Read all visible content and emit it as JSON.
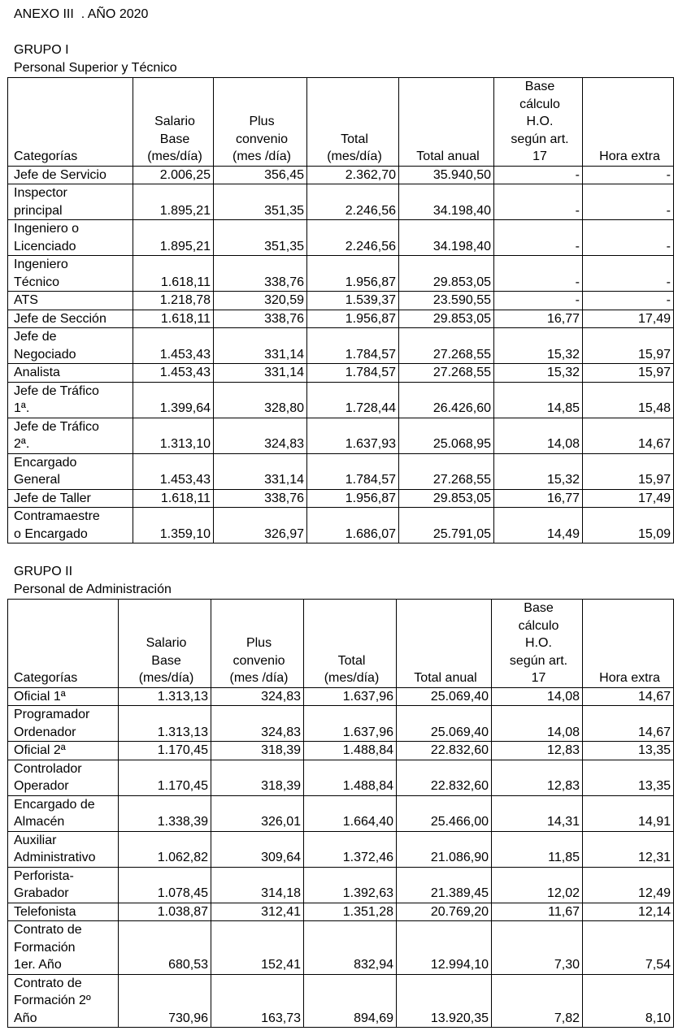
{
  "title": "ANEXO III  . AÑO 2020",
  "groups": [
    {
      "name": "GRUPO I",
      "subtitle": "Personal Superior y Técnico",
      "header": [
        [
          "Categorías"
        ],
        [
          "Salario",
          "Base",
          "(mes/día)"
        ],
        [
          "Plus",
          "convenio",
          "(mes /día)"
        ],
        [
          "Total",
          "(mes/día)"
        ],
        [
          "Total anual"
        ],
        [
          "Base",
          "cálculo",
          "H.O.",
          "según art.",
          "17"
        ],
        [
          "Hora extra"
        ]
      ],
      "rows": [
        {
          "category": [
            "Jefe de Servicio"
          ],
          "values": [
            "2.006,25",
            "356,45",
            "2.362,70",
            "35.940,50",
            "-",
            "-"
          ]
        },
        {
          "category": [
            "Inspector",
            "principal"
          ],
          "values": [
            "1.895,21",
            "351,35",
            "2.246,56",
            "34.198,40",
            "-",
            "-"
          ]
        },
        {
          "category": [
            "Ingeniero o",
            "Licenciado"
          ],
          "values": [
            "1.895,21",
            "351,35",
            "2.246,56",
            "34.198,40",
            "-",
            "-"
          ]
        },
        {
          "category": [
            "Ingeniero",
            "Técnico"
          ],
          "values": [
            "1.618,11",
            "338,76",
            "1.956,87",
            "29.853,05",
            "-",
            "-"
          ]
        },
        {
          "category": [
            "ATS"
          ],
          "values": [
            "1.218,78",
            "320,59",
            "1.539,37",
            "23.590,55",
            "-",
            "-"
          ]
        },
        {
          "category": [
            "Jefe de Sección"
          ],
          "values": [
            "1.618,11",
            "338,76",
            "1.956,87",
            "29.853,05",
            "16,77",
            "17,49"
          ]
        },
        {
          "category": [
            "Jefe de",
            "Negociado"
          ],
          "values": [
            "1.453,43",
            "331,14",
            "1.784,57",
            "27.268,55",
            "15,32",
            "15,97"
          ]
        },
        {
          "category": [
            "Analista"
          ],
          "values": [
            "1.453,43",
            "331,14",
            "1.784,57",
            "27.268,55",
            "15,32",
            "15,97"
          ]
        },
        {
          "category": [
            "Jefe de Tráfico",
            "1ª."
          ],
          "values": [
            "1.399,64",
            "328,80",
            "1.728,44",
            "26.426,60",
            "14,85",
            "15,48"
          ]
        },
        {
          "category": [
            "Jefe de Tráfico",
            "2ª."
          ],
          "values": [
            "1.313,10",
            "324,83",
            "1.637,93",
            "25.068,95",
            "14,08",
            "14,67"
          ]
        },
        {
          "category": [
            "Encargado",
            "General"
          ],
          "values": [
            "1.453,43",
            "331,14",
            "1.784,57",
            "27.268,55",
            "15,32",
            "15,97"
          ]
        },
        {
          "category": [
            "Jefe de Taller"
          ],
          "values": [
            "1.618,11",
            "338,76",
            "1.956,87",
            "29.853,05",
            "16,77",
            "17,49"
          ]
        },
        {
          "category": [
            "Contramaestre",
            "o Encargado"
          ],
          "values": [
            "1.359,10",
            "326,97",
            "1.686,07",
            "25.791,05",
            "14,49",
            "15,09"
          ]
        }
      ]
    },
    {
      "name": "GRUPO II",
      "subtitle": "Personal de Administración",
      "header": [
        [
          "Categorías"
        ],
        [
          "Salario",
          "Base",
          "(mes/día)"
        ],
        [
          "Plus",
          "convenio",
          "(mes /día)"
        ],
        [
          "Total",
          "(mes/día)"
        ],
        [
          "Total anual"
        ],
        [
          "Base",
          "cálculo",
          "H.O.",
          "según art.",
          "17"
        ],
        [
          "Hora extra"
        ]
      ],
      "rows": [
        {
          "category": [
            "Oficial 1ª"
          ],
          "values": [
            "1.313,13",
            "324,83",
            "1.637,96",
            "25.069,40",
            "14,08",
            "14,67"
          ]
        },
        {
          "category": [
            "Programador",
            "Ordenador"
          ],
          "values": [
            "1.313,13",
            "324,83",
            "1.637,96",
            "25.069,40",
            "14,08",
            "14,67"
          ]
        },
        {
          "category": [
            "Oficial 2ª"
          ],
          "values": [
            "1.170,45",
            "318,39",
            "1.488,84",
            "22.832,60",
            "12,83",
            "13,35"
          ]
        },
        {
          "category": [
            "Controlador",
            "Operador"
          ],
          "values": [
            "1.170,45",
            "318,39",
            "1.488,84",
            "22.832,60",
            "12,83",
            "13,35"
          ]
        },
        {
          "category": [
            "Encargado de",
            "Almacén"
          ],
          "values": [
            "1.338,39",
            "326,01",
            "1.664,40",
            "25.466,00",
            "14,31",
            "14,91"
          ]
        },
        {
          "category": [
            "Auxiliar",
            "Administrativo"
          ],
          "values": [
            "1.062,82",
            "309,64",
            "1.372,46",
            "21.086,90",
            "11,85",
            "12,31"
          ]
        },
        {
          "category": [
            "Perforista-",
            "Grabador"
          ],
          "values": [
            "1.078,45",
            "314,18",
            "1.392,63",
            "21.389,45",
            "12,02",
            "12,49"
          ]
        },
        {
          "category": [
            "Telefonista"
          ],
          "values": [
            "1.038,87",
            "312,41",
            "1.351,28",
            "20.769,20",
            "11,67",
            "12,14"
          ]
        },
        {
          "category": [
            "Contrato de",
            "Formación",
            "1er. Año"
          ],
          "values": [
            "680,53",
            "152,41",
            "832,94",
            "12.994,10",
            "7,30",
            "7,54"
          ]
        },
        {
          "category": [
            "Contrato de",
            "Formación 2º",
            "Año"
          ],
          "values": [
            "730,96",
            "163,73",
            "894,69",
            "13.920,35",
            "7,82",
            "8,10"
          ]
        }
      ]
    }
  ]
}
